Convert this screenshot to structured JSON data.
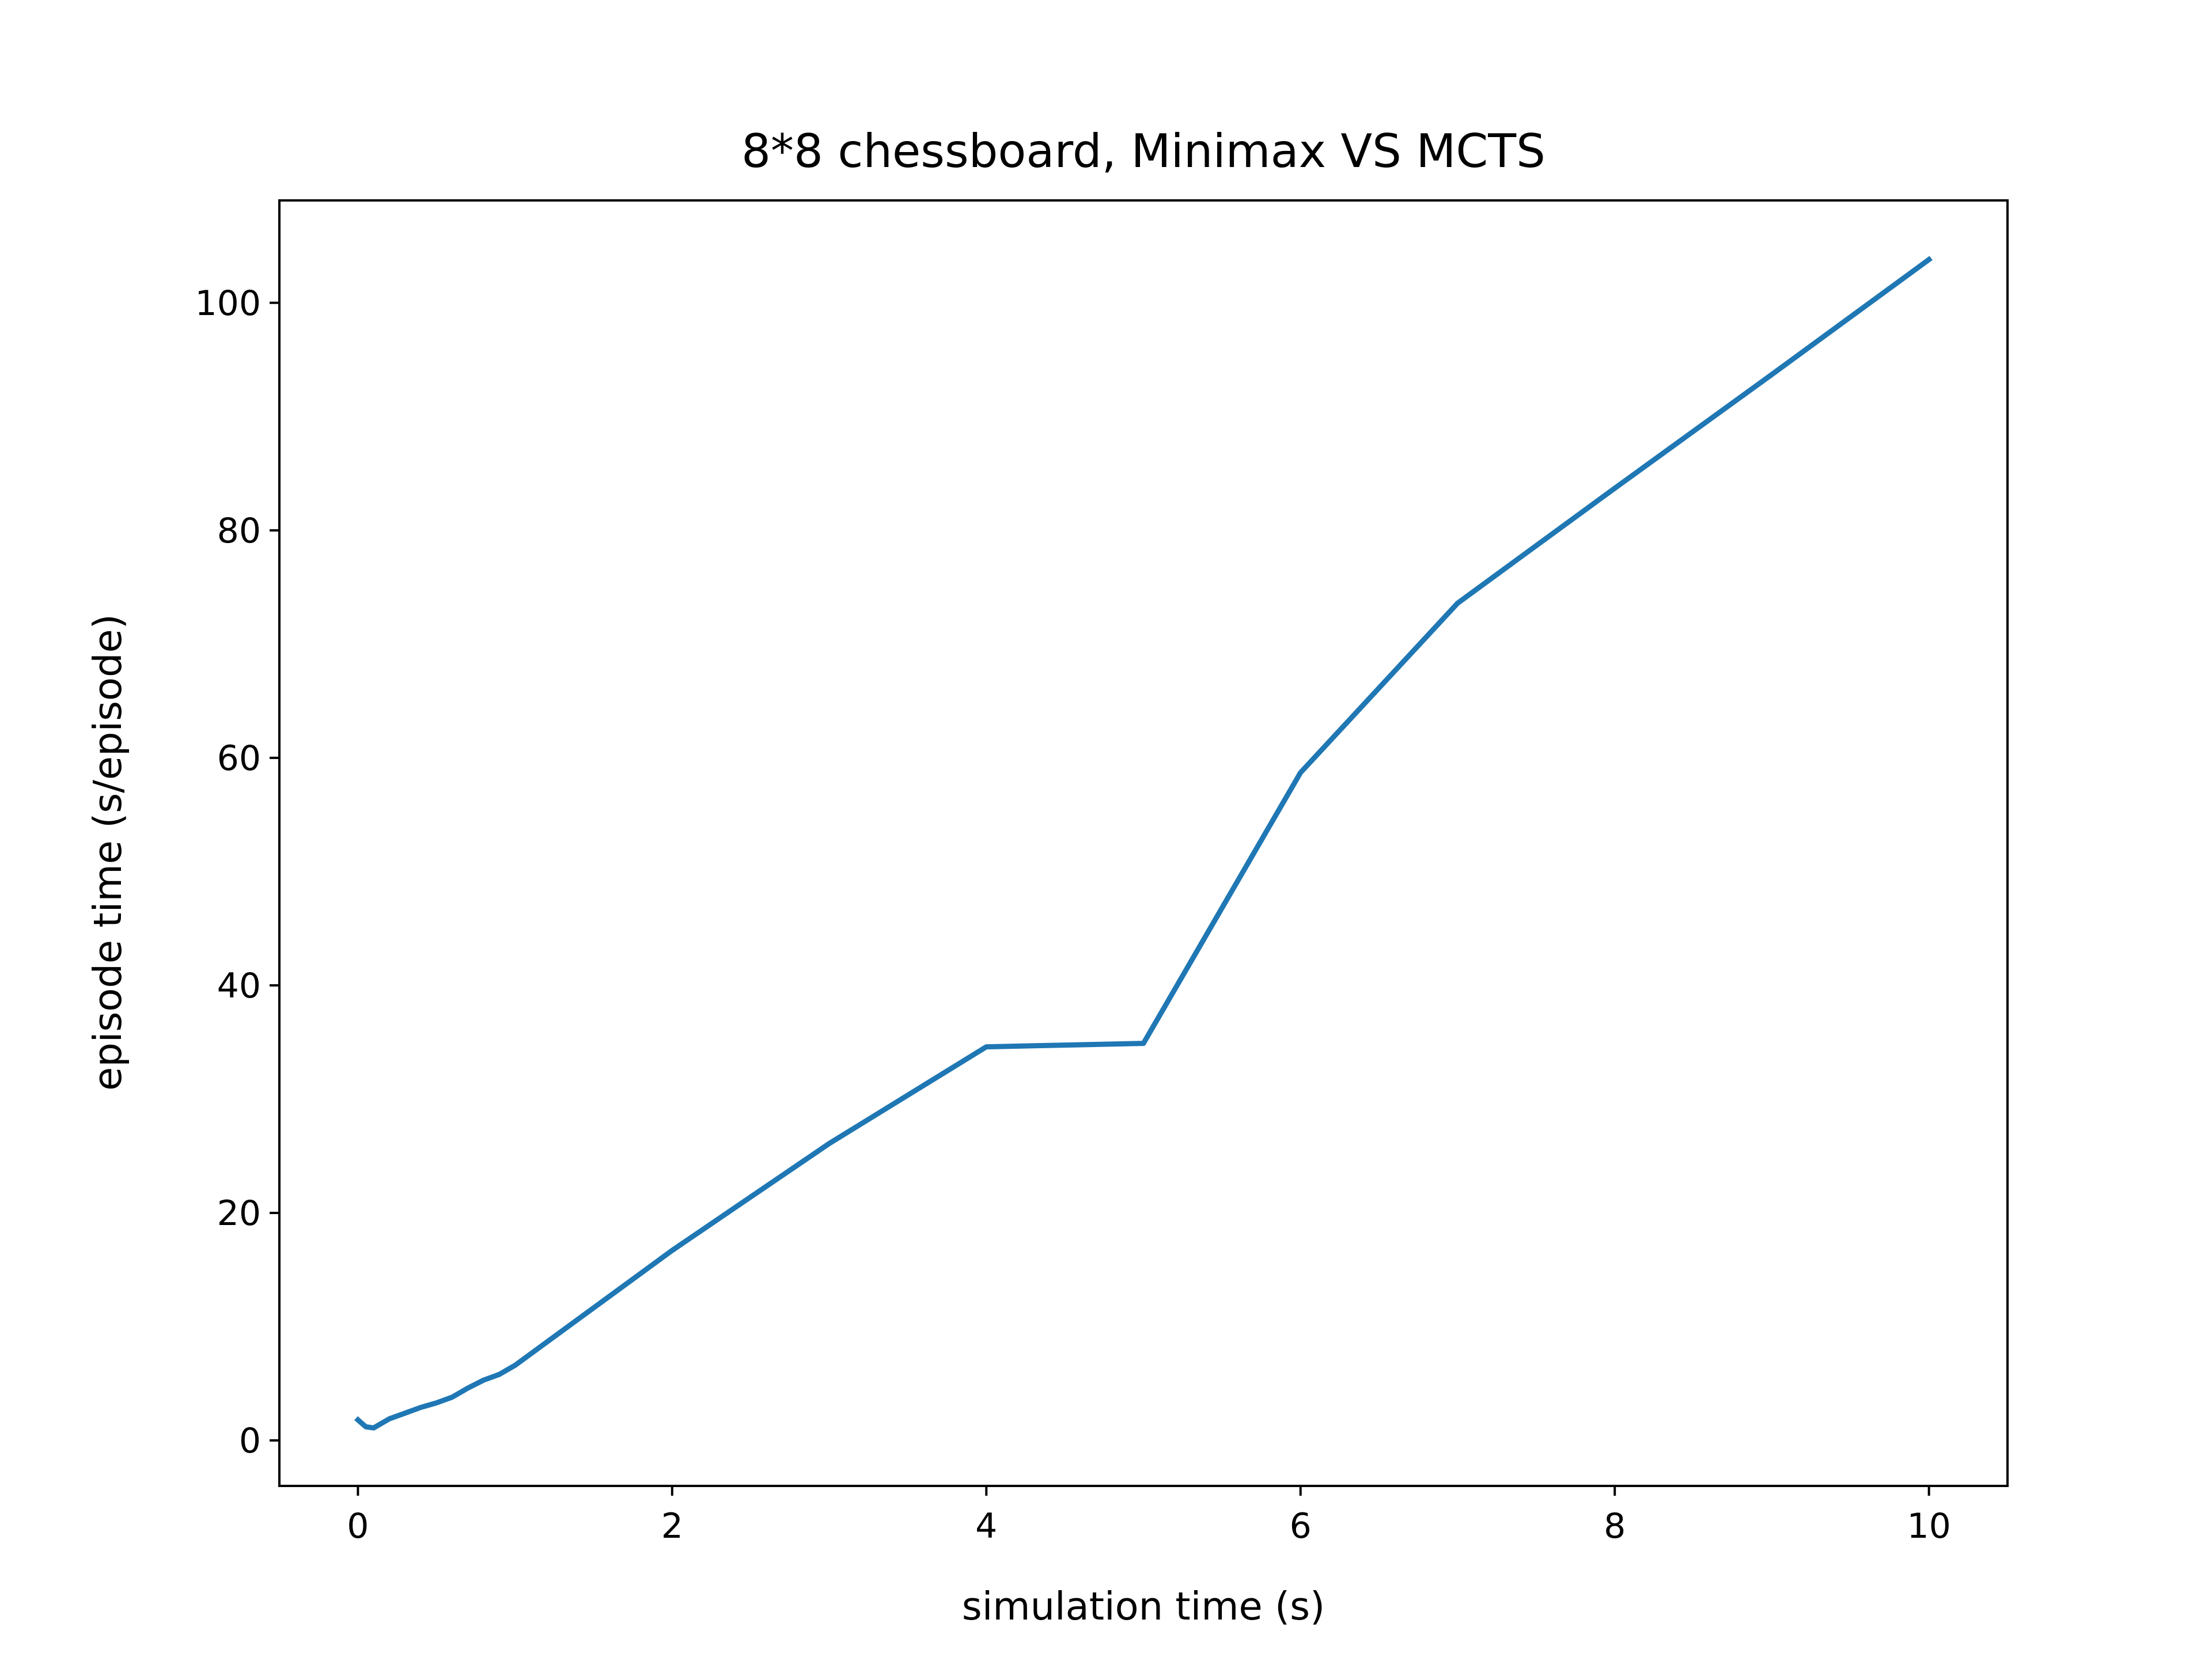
{
  "chart_data": {
    "type": "line",
    "title": "8*8 chessboard, Minimax VS MCTS",
    "xlabel": "simulation time (s)",
    "ylabel": "episode time (s/episode)",
    "xlim": [
      -0.5,
      10.5
    ],
    "ylim": [
      -4,
      109
    ],
    "xticks": [
      0,
      2,
      4,
      6,
      8,
      10
    ],
    "yticks": [
      0,
      20,
      40,
      60,
      80,
      100
    ],
    "xtick_labels": [
      "0",
      "2",
      "4",
      "6",
      "8",
      "10"
    ],
    "ytick_labels": [
      "0",
      "20",
      "40",
      "60",
      "80",
      "100"
    ],
    "grid": false,
    "legend": "none",
    "series": [
      {
        "color": "#1f77b4",
        "x": [
          0,
          0.05,
          0.1,
          0.15,
          0.2,
          0.3,
          0.4,
          0.5,
          0.6,
          0.7,
          0.8,
          0.9,
          1,
          2,
          3,
          4,
          5,
          6,
          7,
          8,
          9,
          10
        ],
        "y": [
          1.8,
          1.2,
          1.1,
          1.5,
          1.9,
          2.4,
          2.9,
          3.3,
          3.8,
          4.6,
          5.3,
          5.8,
          6.6,
          16.7,
          26.1,
          34.6,
          34.9,
          58.7,
          73.6,
          83.7,
          93.7,
          103.8
        ]
      }
    ]
  }
}
